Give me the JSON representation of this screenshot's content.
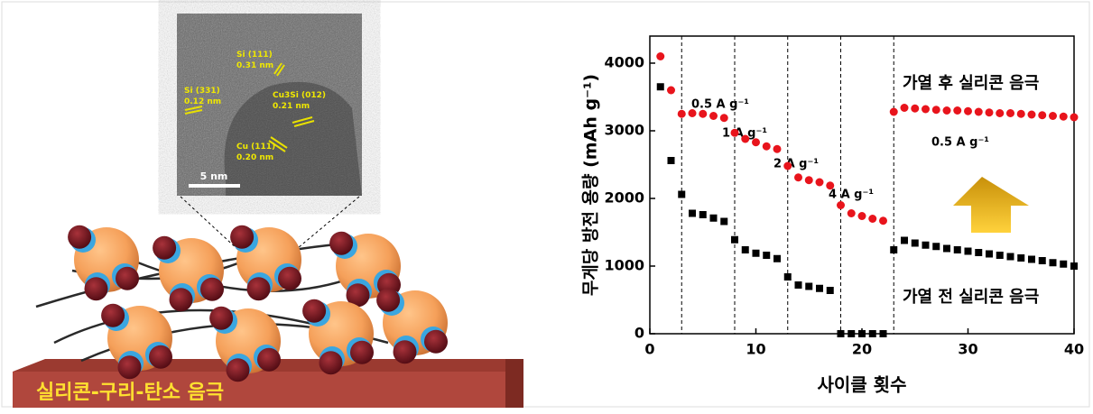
{
  "tem_image": {
    "labels": [
      "Si (111)\n0.31 nm",
      "Si (331)\n0.12 nm",
      "Cu3Si (012)\n0.21 nm",
      "Cu (111)\n0.20 nm"
    ],
    "scale_bar": "5 nm"
  },
  "electrode_label": "실리콘-구리-탄소 음극",
  "chart_data": {
    "type": "scatter",
    "x_label": "사이클 횟수",
    "y_label": "무게당 방전 용량 (mAh g⁻¹)",
    "xlim": [
      0,
      40
    ],
    "xticks": [
      0,
      10,
      20,
      30,
      40
    ],
    "ylim": [
      0,
      4400
    ],
    "yticks": [
      0,
      1000,
      2000,
      3000,
      4000
    ],
    "dividers": [
      3,
      8,
      13,
      18,
      23
    ],
    "annotations": [
      "0.5 A g⁻¹",
      "1 A g⁻¹",
      "2 A g⁻¹",
      "4 A g⁻¹",
      "0.5 A g⁻¹"
    ],
    "x": [
      1,
      2,
      3,
      4,
      5,
      6,
      7,
      8,
      9,
      10,
      11,
      12,
      13,
      14,
      15,
      16,
      17,
      18,
      19,
      20,
      21,
      22,
      23,
      24,
      25,
      26,
      27,
      28,
      29,
      30,
      31,
      32,
      33,
      34,
      35,
      36,
      37,
      38,
      39,
      40
    ],
    "series": [
      {
        "name": "가열 후 실리콘 음극",
        "color": "#e8141c",
        "marker": "circle",
        "values": [
          4100,
          3600,
          3250,
          3260,
          3250,
          3220,
          3190,
          2970,
          2880,
          2830,
          2770,
          2730,
          2480,
          2310,
          2270,
          2240,
          2190,
          1900,
          1780,
          1740,
          1700,
          1670,
          3280,
          3340,
          3330,
          3320,
          3310,
          3300,
          3300,
          3290,
          3280,
          3270,
          3260,
          3260,
          3250,
          3240,
          3230,
          3220,
          3210,
          3200
        ]
      },
      {
        "name": "가열 전 실리콘 음극",
        "color": "#000000",
        "marker": "square",
        "values": [
          3650,
          2560,
          2060,
          1780,
          1760,
          1710,
          1660,
          1390,
          1240,
          1190,
          1160,
          1110,
          840,
          720,
          700,
          670,
          640,
          0,
          0,
          0,
          0,
          0,
          1240,
          1380,
          1340,
          1310,
          1290,
          1260,
          1240,
          1220,
          1200,
          1180,
          1160,
          1140,
          1120,
          1100,
          1080,
          1050,
          1030,
          1000
        ]
      }
    ]
  }
}
